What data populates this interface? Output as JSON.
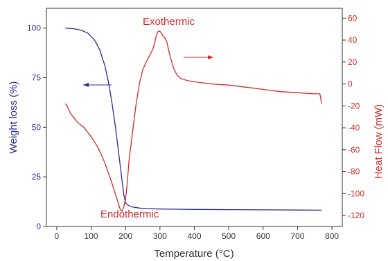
{
  "chart_data": {
    "type": "line",
    "title": "",
    "xlabel": "Temperature (°C)",
    "ylabel_left": "Weight loss (%)",
    "ylabel_right": "Heat Flow (mW)",
    "xlim": [
      -30,
      830
    ],
    "ylim_left": [
      0,
      110
    ],
    "ylim_right": [
      -130,
      69
    ],
    "x_ticks": [
      0,
      100,
      200,
      300,
      400,
      500,
      600,
      700,
      800
    ],
    "y_left_ticks": [
      0,
      25,
      50,
      75,
      100
    ],
    "y_right_ticks": [
      -120,
      -100,
      -80,
      -60,
      -40,
      -20,
      0,
      20,
      40,
      60
    ],
    "grid": false,
    "colors": {
      "weight": "#2e2b8f",
      "heat": "#d42a2a",
      "axis": "#333333"
    },
    "series": [
      {
        "axis": "left",
        "color": "#2e2b8f",
        "x": [
          25,
          50,
          70,
          90,
          110,
          125,
          140,
          150,
          160,
          170,
          180,
          190,
          195,
          200,
          205,
          210,
          220,
          240,
          260,
          300,
          400,
          500,
          600,
          700,
          770
        ],
        "y": [
          100,
          99.7,
          99,
          97.5,
          94,
          89,
          81,
          73,
          63,
          51,
          37,
          23,
          16,
          12,
          11,
          10.5,
          9.8,
          9.3,
          9.0,
          8.8,
          8.6,
          8.5,
          8.4,
          8.3,
          8.2
        ]
      },
      {
        "axis": "right",
        "color": "#d42a2a",
        "x": [
          25,
          30,
          40,
          60,
          80,
          100,
          120,
          140,
          160,
          170,
          180,
          185,
          190,
          195,
          200,
          205,
          210,
          220,
          230,
          240,
          250,
          260,
          270,
          280,
          285,
          290,
          295,
          300,
          305,
          310,
          315,
          320,
          330,
          340,
          350,
          360,
          380,
          400,
          450,
          500,
          550,
          600,
          650,
          700,
          750,
          765,
          770
        ],
        "y": [
          -18,
          -20,
          -27,
          -35,
          -40,
          -48,
          -58,
          -72,
          -90,
          -100,
          -110,
          -115,
          -116,
          -112,
          -105,
          -90,
          -70,
          -45,
          -20,
          0,
          13,
          20,
          26,
          32,
          38,
          45,
          48,
          48,
          46,
          43,
          42,
          38,
          25,
          14,
          8,
          5,
          3,
          2,
          0,
          -1,
          -3,
          -5,
          -7,
          -8,
          -9,
          -9,
          -18
        ]
      }
    ],
    "annotations": {
      "top": "Exothermic",
      "bottom": "Endothermic"
    }
  }
}
